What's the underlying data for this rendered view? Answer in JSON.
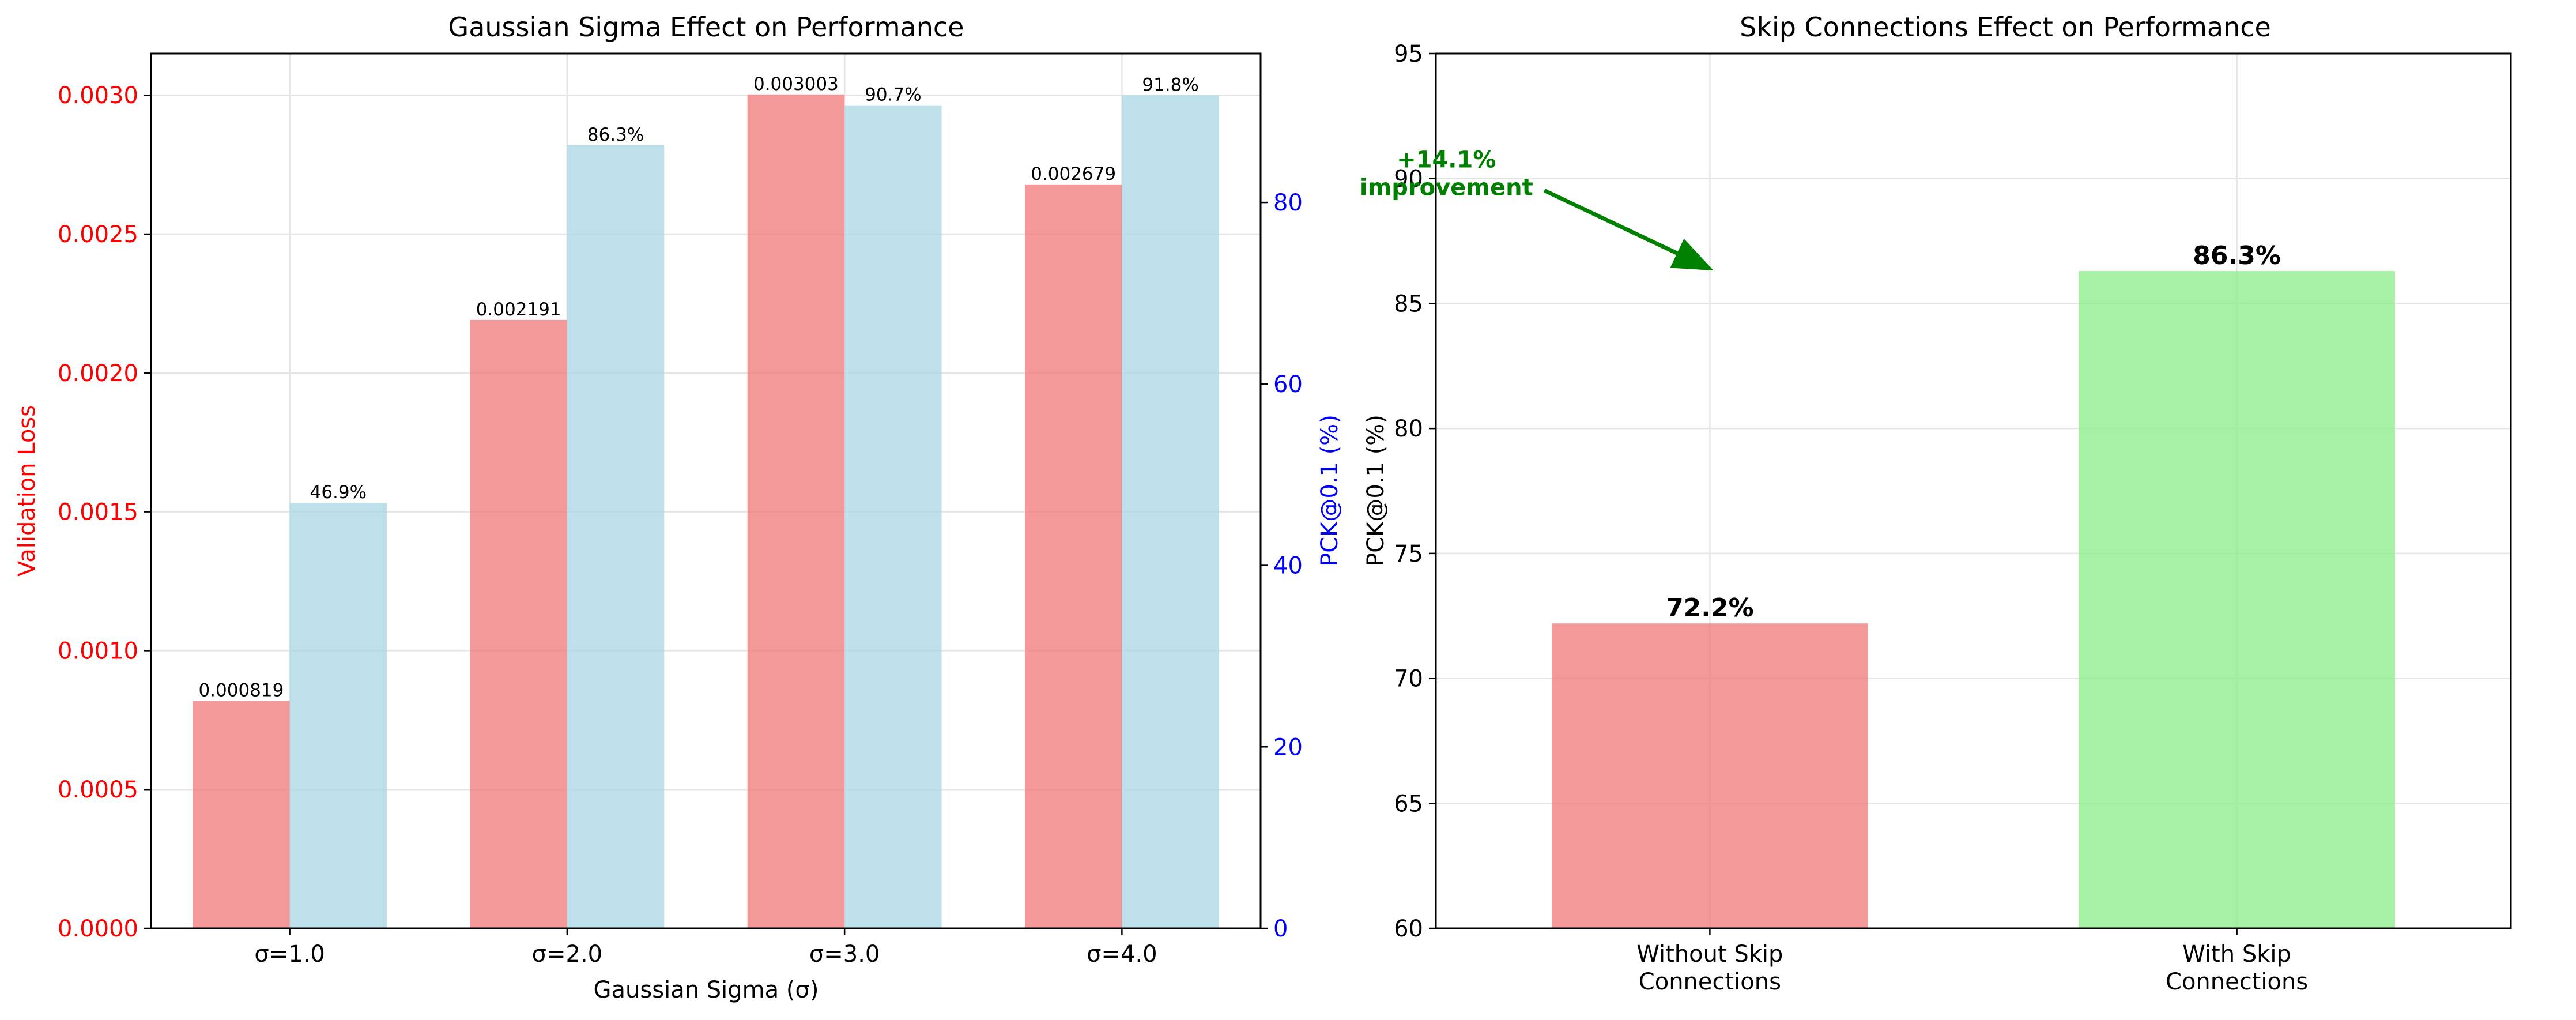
{
  "chart_data": [
    {
      "type": "bar",
      "title": "Gaussian Sigma Effect on Performance",
      "xlabel": "Gaussian Sigma (σ)",
      "categories": [
        "σ=1.0",
        "σ=2.0",
        "σ=3.0",
        "σ=4.0"
      ],
      "y_left": {
        "label": "Validation Loss",
        "color": "#ff0000",
        "ylim": [
          0,
          0.00315
        ],
        "ticks": [
          0.0,
          0.0005,
          0.001,
          0.0015,
          0.002,
          0.0025,
          0.003
        ],
        "tick_labels": [
          "0.0000",
          "0.0005",
          "0.0010",
          "0.0015",
          "0.0020",
          "0.0025",
          "0.0030"
        ]
      },
      "y_right": {
        "label": "PCK@0.1 (%)",
        "color": "#0000ff",
        "ylim": [
          0,
          96.4
        ],
        "ticks": [
          0,
          20,
          40,
          60,
          80
        ],
        "tick_labels": [
          "0",
          "20",
          "40",
          "60",
          "80"
        ]
      },
      "series": [
        {
          "axis": "left",
          "color": "#f08080",
          "values": [
            0.000819,
            0.002191,
            0.003003,
            0.002679
          ],
          "data_labels": [
            "0.000819",
            "0.002191",
            "0.003003",
            "0.002679"
          ]
        },
        {
          "axis": "right",
          "color": "#add8e6",
          "values": [
            46.9,
            86.3,
            90.7,
            91.8
          ],
          "data_labels": [
            "46.9%",
            "86.3%",
            "90.7%",
            "91.8%"
          ]
        }
      ],
      "grid": true
    },
    {
      "type": "bar",
      "title": "Skip Connections Effect on Performance",
      "xlabel": "",
      "ylabel": "PCK@0.1 (%)",
      "categories": [
        [
          "Without Skip",
          "Connections"
        ],
        [
          "With Skip",
          "Connections"
        ]
      ],
      "ylim": [
        60,
        95
      ],
      "ticks": [
        60,
        65,
        70,
        75,
        80,
        85,
        90,
        95
      ],
      "tick_labels": [
        "60",
        "65",
        "70",
        "75",
        "80",
        "85",
        "90",
        "95"
      ],
      "values": [
        72.2,
        86.3
      ],
      "data_labels": [
        "72.2%",
        "86.3%"
      ],
      "colors": [
        "#f08080",
        "#90ee90"
      ],
      "annotation": {
        "text": [
          "+14.1%",
          "improvement"
        ],
        "color": "#008000",
        "text_at": [
          -0.5,
          90.4
        ],
        "arrow_to": [
          0.0,
          86.3
        ]
      },
      "grid": true
    }
  ]
}
